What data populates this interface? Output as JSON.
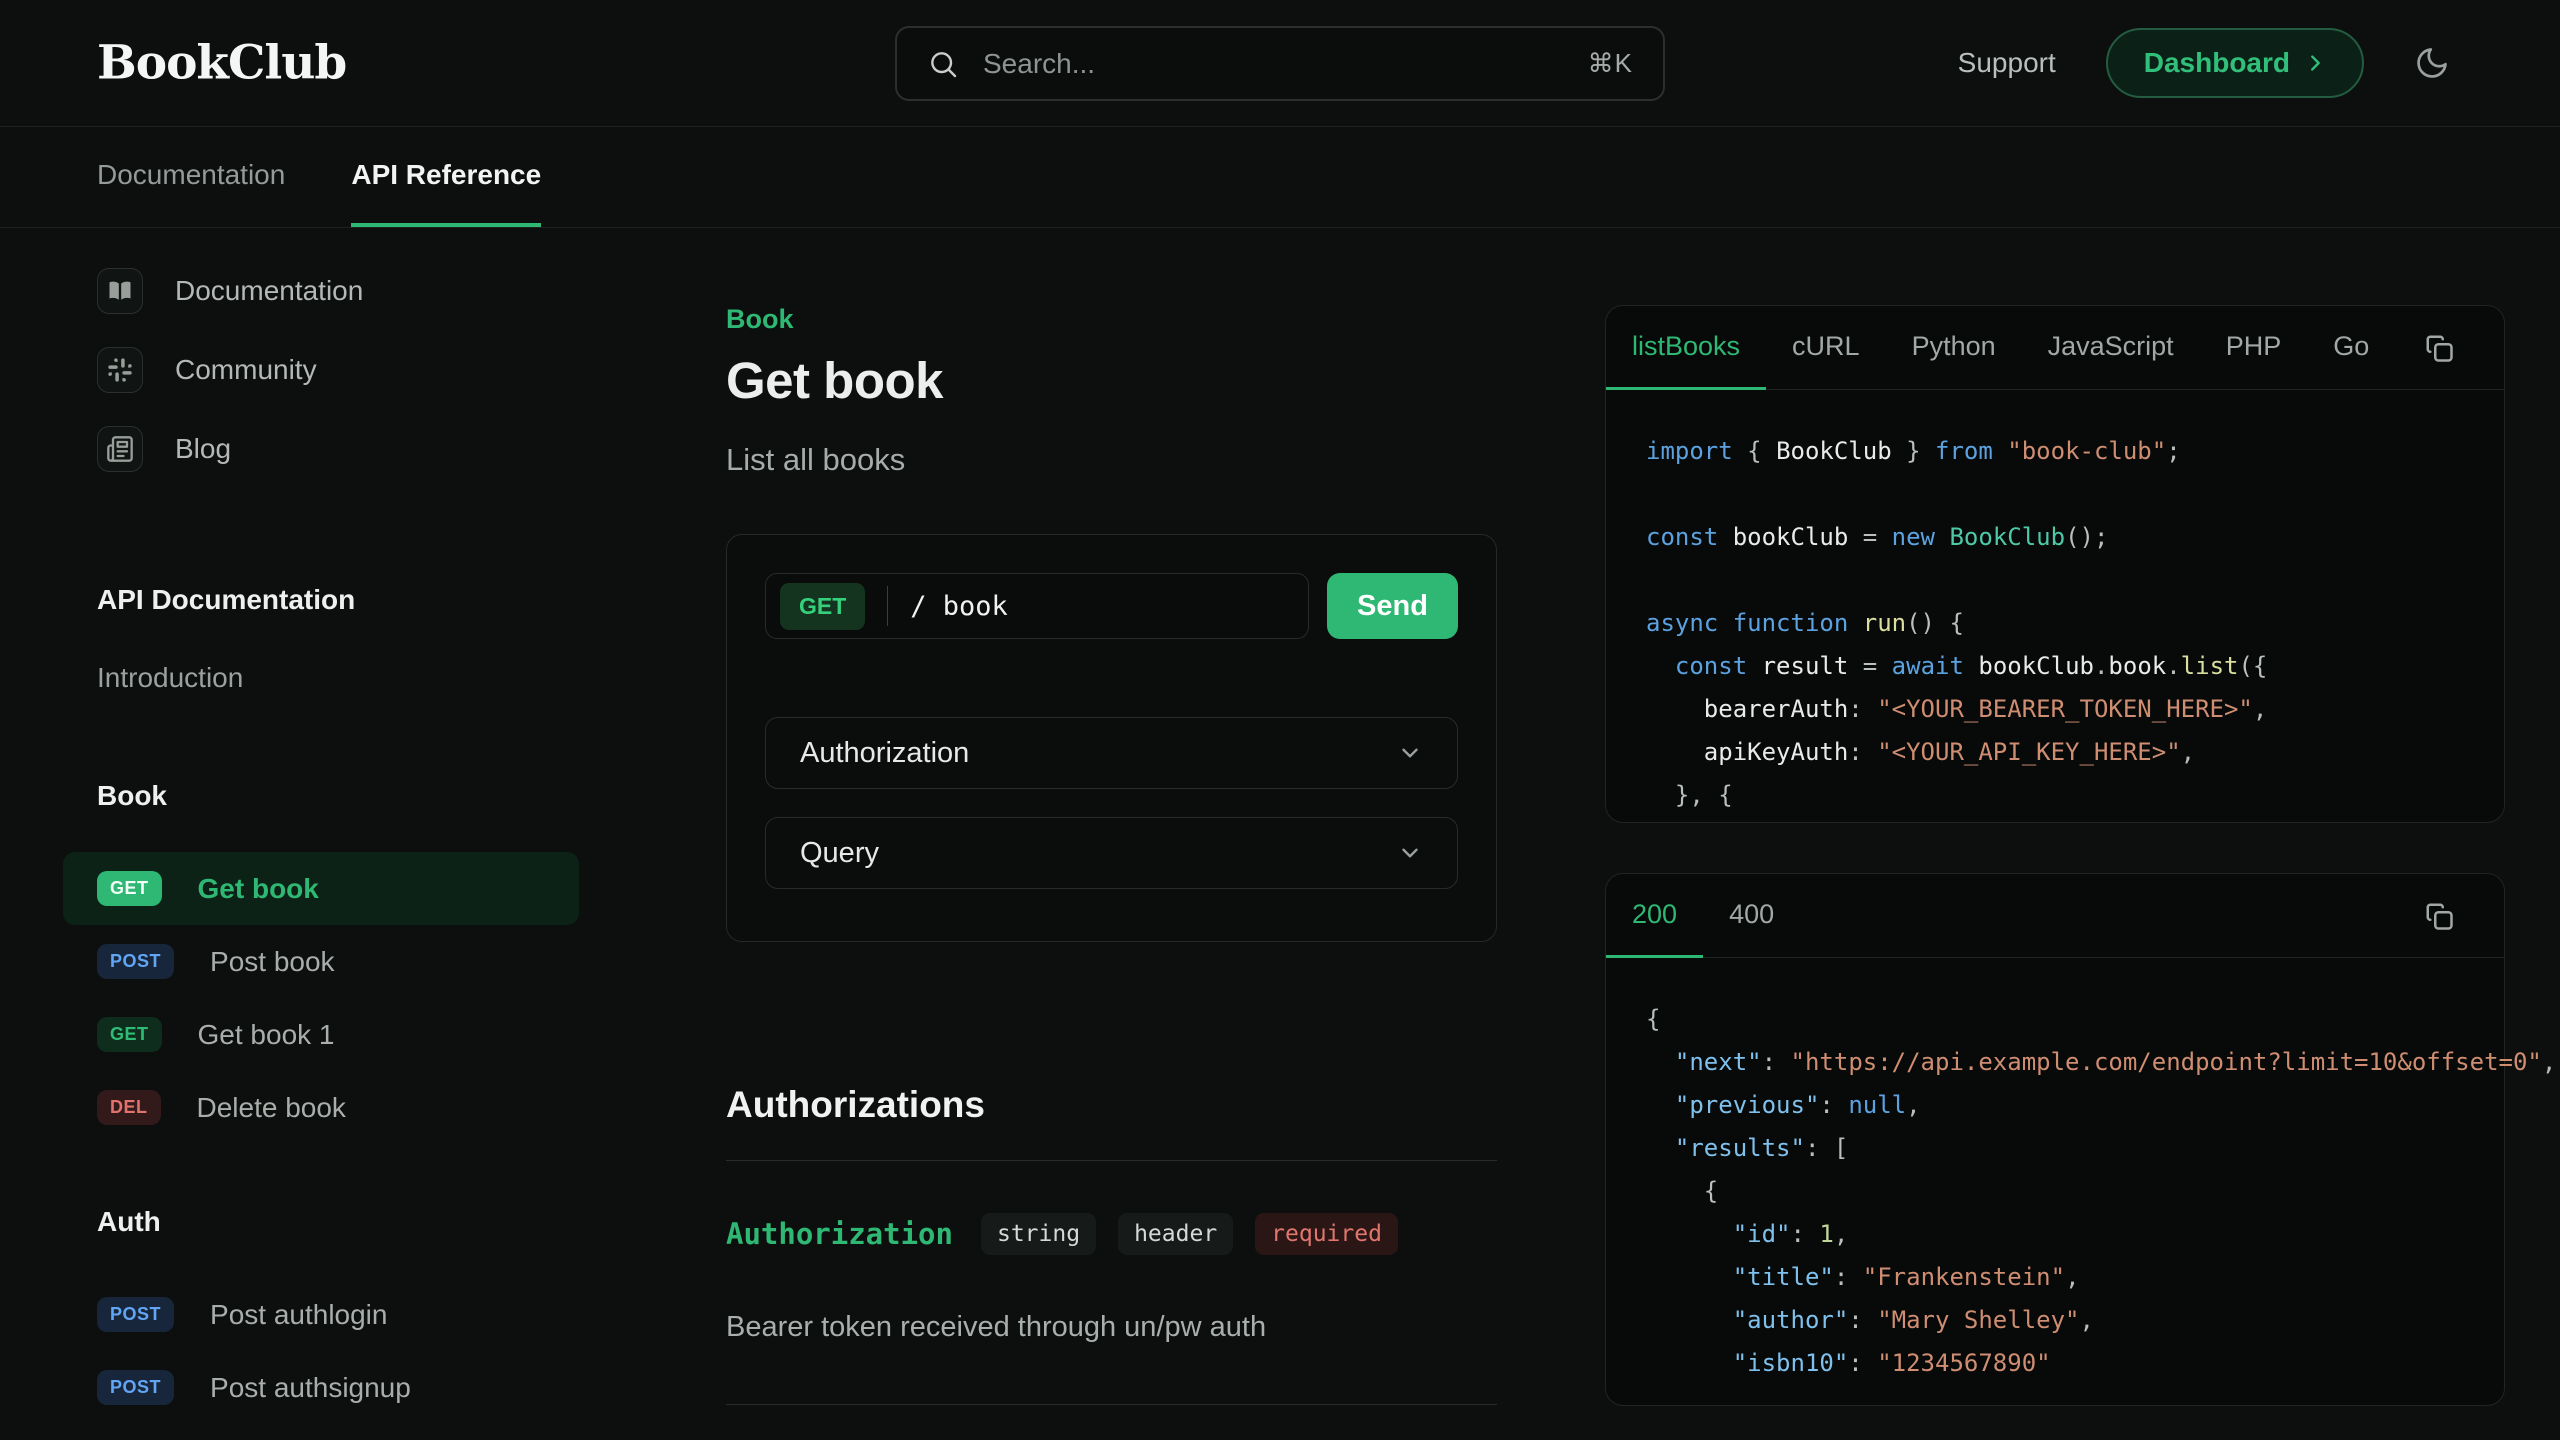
{
  "colors": {
    "accent_green": "#2eb873",
    "page_bg": "#0c0f0e",
    "panel_bg": "#070a09",
    "method_blue": "#62a5f5",
    "method_red": "#e2726c",
    "code_string": "#cf8d72",
    "code_keyword": "#5ca2e0"
  },
  "header": {
    "logo": "BookClub",
    "search": {
      "placeholder": "Search...",
      "shortcut": "⌘K"
    },
    "support_label": "Support",
    "dashboard_label": "Dashboard"
  },
  "nav_tabs": [
    {
      "label": "Documentation",
      "active": false
    },
    {
      "label": "API Reference",
      "active": true
    }
  ],
  "sidebar": {
    "links": [
      {
        "label": "Documentation",
        "icon": "book-icon"
      },
      {
        "label": "Community",
        "icon": "slack-icon"
      },
      {
        "label": "Blog",
        "icon": "newspaper-icon"
      }
    ],
    "sections": [
      {
        "title": "API Documentation",
        "items": [
          {
            "label": "Introduction",
            "method": null
          }
        ]
      },
      {
        "title": "Book",
        "items": [
          {
            "label": "Get book",
            "method": "GET",
            "style": "get-active",
            "active": true
          },
          {
            "label": "Post book",
            "method": "POST",
            "style": "post",
            "active": false
          },
          {
            "label": "Get book 1",
            "method": "GET",
            "style": "get",
            "active": false
          },
          {
            "label": "Delete book",
            "method": "DEL",
            "style": "del",
            "active": false
          }
        ]
      },
      {
        "title": "Auth",
        "items": [
          {
            "label": "Post authlogin",
            "method": "POST",
            "style": "post",
            "active": false
          },
          {
            "label": "Post authsignup",
            "method": "POST",
            "style": "post",
            "active": false
          }
        ]
      }
    ]
  },
  "main": {
    "category": "Book",
    "title": "Get book",
    "subtitle": "List all books",
    "playground": {
      "method": "GET",
      "path": "/ book",
      "send_label": "Send",
      "sections": [
        "Authorization",
        "Query"
      ]
    },
    "authorizations": {
      "heading": "Authorizations",
      "name": "Authorization",
      "badges": [
        {
          "label": "string",
          "required": false
        },
        {
          "label": "header",
          "required": false
        },
        {
          "label": "required",
          "required": true
        }
      ],
      "description": "Bearer token received through un/pw auth"
    }
  },
  "code_panel": {
    "tabs": [
      "listBooks",
      "cURL",
      "Python",
      "JavaScript",
      "PHP",
      "Go"
    ],
    "active_tab": "listBooks",
    "lines": [
      [
        [
          "kw",
          "import"
        ],
        [
          "pn",
          " { "
        ],
        [
          "id",
          "BookClub"
        ],
        [
          "pn",
          " } "
        ],
        [
          "kw",
          "from"
        ],
        [
          "pn",
          " "
        ],
        [
          "str",
          "\"book-club\""
        ],
        [
          "pn",
          ";"
        ]
      ],
      [],
      [
        [
          "kw",
          "const"
        ],
        [
          "pn",
          " "
        ],
        [
          "id",
          "bookClub"
        ],
        [
          "pn",
          " = "
        ],
        [
          "kw",
          "new"
        ],
        [
          "pn",
          " "
        ],
        [
          "cls",
          "BookClub"
        ],
        [
          "pn",
          "();"
        ]
      ],
      [],
      [
        [
          "kw",
          "async"
        ],
        [
          "pn",
          " "
        ],
        [
          "kw",
          "function"
        ],
        [
          "pn",
          " "
        ],
        [
          "fn",
          "run"
        ],
        [
          "pn",
          "() {"
        ]
      ],
      [
        [
          "pn",
          "  "
        ],
        [
          "kw",
          "const"
        ],
        [
          "pn",
          " "
        ],
        [
          "id",
          "result"
        ],
        [
          "pn",
          " = "
        ],
        [
          "kw",
          "await"
        ],
        [
          "pn",
          " "
        ],
        [
          "id",
          "bookClub"
        ],
        [
          "pn",
          "."
        ],
        [
          "id",
          "book"
        ],
        [
          "pn",
          "."
        ],
        [
          "fn",
          "list"
        ],
        [
          "pn",
          "({"
        ]
      ],
      [
        [
          "pn",
          "    "
        ],
        [
          "id",
          "bearerAuth"
        ],
        [
          "pn",
          ": "
        ],
        [
          "str",
          "\"<YOUR_BEARER_TOKEN_HERE>\""
        ],
        [
          "pn",
          ","
        ]
      ],
      [
        [
          "pn",
          "    "
        ],
        [
          "id",
          "apiKeyAuth"
        ],
        [
          "pn",
          ": "
        ],
        [
          "str",
          "\"<YOUR_API_KEY_HERE>\""
        ],
        [
          "pn",
          ","
        ]
      ],
      [
        [
          "pn",
          "  }, {"
        ]
      ]
    ]
  },
  "response_panel": {
    "tabs": [
      "200",
      "400"
    ],
    "active_tab": "200",
    "lines": [
      [
        [
          "pn",
          "{"
        ]
      ],
      [
        [
          "pn",
          "  "
        ],
        [
          "key",
          "\"next\""
        ],
        [
          "pn",
          ": "
        ],
        [
          "str",
          "\"https://api.example.com/endpoint?limit=10&offset=0\""
        ],
        [
          "pn",
          ","
        ]
      ],
      [
        [
          "pn",
          "  "
        ],
        [
          "key",
          "\"previous\""
        ],
        [
          "pn",
          ": "
        ],
        [
          "nul",
          "null"
        ],
        [
          "pn",
          ","
        ]
      ],
      [
        [
          "pn",
          "  "
        ],
        [
          "key",
          "\"results\""
        ],
        [
          "pn",
          ": ["
        ]
      ],
      [
        [
          "pn",
          "    {"
        ]
      ],
      [
        [
          "pn",
          "      "
        ],
        [
          "key",
          "\"id\""
        ],
        [
          "pn",
          ": "
        ],
        [
          "num",
          "1"
        ],
        [
          "pn",
          ","
        ]
      ],
      [
        [
          "pn",
          "      "
        ],
        [
          "key",
          "\"title\""
        ],
        [
          "pn",
          ": "
        ],
        [
          "str",
          "\"Frankenstein\""
        ],
        [
          "pn",
          ","
        ]
      ],
      [
        [
          "pn",
          "      "
        ],
        [
          "key",
          "\"author\""
        ],
        [
          "pn",
          ": "
        ],
        [
          "str",
          "\"Mary Shelley\""
        ],
        [
          "pn",
          ","
        ]
      ],
      [
        [
          "pn",
          "      "
        ],
        [
          "key",
          "\"isbn10\""
        ],
        [
          "pn",
          ": "
        ],
        [
          "str",
          "\"1234567890\""
        ]
      ]
    ]
  }
}
